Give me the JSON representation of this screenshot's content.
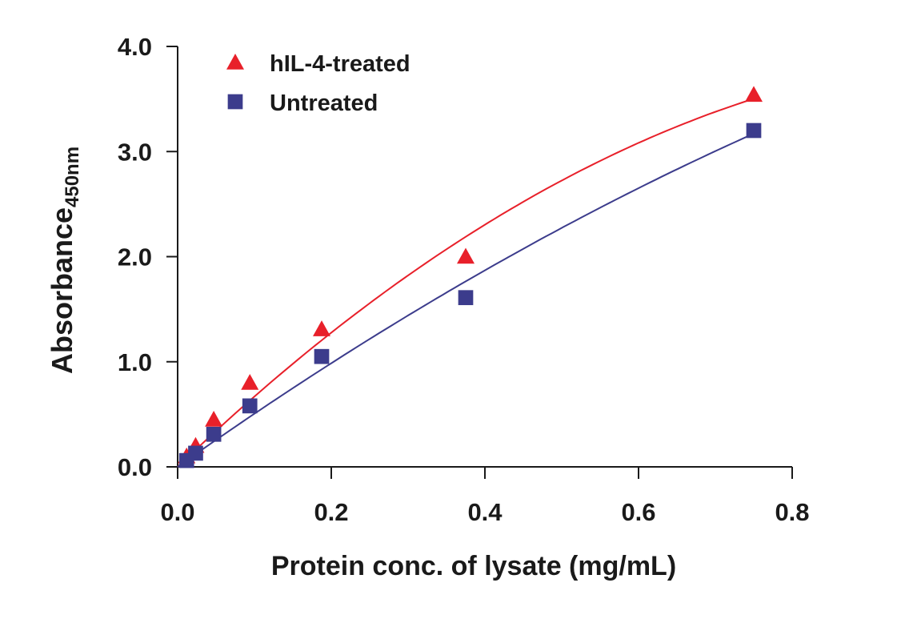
{
  "chart_data": {
    "type": "scatter",
    "xlabel": "Protein conc. of lysate (mg/mL)",
    "ylabel": "Absorbance",
    "ylabel_subscript": "450nm",
    "xlim": [
      0,
      0.8
    ],
    "xticks": [
      {
        "value": 0,
        "label": "0.0"
      },
      0.2,
      0.4,
      0.6,
      0.8
    ],
    "ylim": [
      0,
      4
    ],
    "yticks": [
      {
        "value": 0,
        "label": "0.0"
      },
      {
        "value": 1,
        "label": "1.0"
      },
      {
        "value": 2,
        "label": "2.0"
      },
      {
        "value": 3,
        "label": "3.0"
      },
      {
        "value": 4,
        "label": "4.0"
      }
    ],
    "legend": "upper left",
    "series": [
      {
        "name": "hIL-4-treated",
        "color": "#e8202a",
        "marker": "triangle",
        "x": [
          0.0117,
          0.0234,
          0.047,
          0.094,
          0.1875,
          0.375,
          0.75
        ],
        "values": [
          0.1,
          0.2,
          0.45,
          0.8,
          1.31,
          2.0,
          3.54
        ]
      },
      {
        "name": "Untreated",
        "color": "#3c3c8c",
        "marker": "square",
        "x": [
          0.0117,
          0.0234,
          0.047,
          0.094,
          0.1875,
          0.375,
          0.75
        ],
        "values": [
          0.06,
          0.13,
          0.31,
          0.58,
          1.05,
          1.61,
          3.2
        ]
      }
    ]
  }
}
